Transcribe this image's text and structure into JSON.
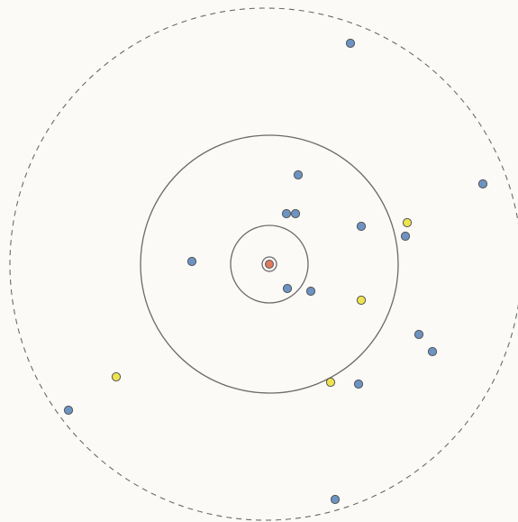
{
  "diagram": {
    "rings": [
      {
        "kind": "center-marker",
        "style": "solid"
      },
      {
        "kind": "inner",
        "style": "solid"
      },
      {
        "kind": "middle",
        "style": "solid"
      },
      {
        "kind": "outer",
        "style": "dashed"
      }
    ],
    "center_dot": {
      "color": "#e07a5f"
    },
    "colors": {
      "blue": "#6d93c2",
      "yellow": "#eee34f",
      "orange": "#e07a5f",
      "stroke": "#555555",
      "ring": "#6a6a6a"
    },
    "dots": [
      {
        "color": "blue"
      },
      {
        "color": "blue"
      },
      {
        "color": "blue"
      },
      {
        "color": "blue"
      },
      {
        "color": "blue"
      },
      {
        "color": "yellow"
      },
      {
        "color": "blue"
      },
      {
        "color": "blue"
      },
      {
        "color": "blue"
      },
      {
        "color": "blue"
      },
      {
        "color": "blue"
      },
      {
        "color": "yellow"
      },
      {
        "color": "blue"
      },
      {
        "color": "blue"
      },
      {
        "color": "yellow"
      },
      {
        "color": "yellow"
      },
      {
        "color": "blue"
      },
      {
        "color": "blue"
      },
      {
        "color": "blue"
      }
    ]
  }
}
